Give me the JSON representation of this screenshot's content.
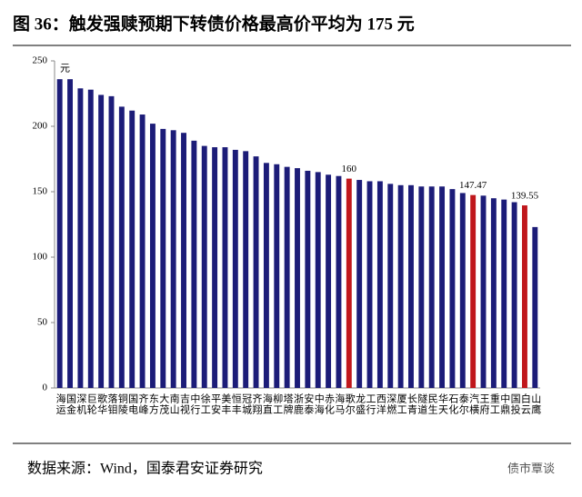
{
  "chart_data": {
    "type": "bar",
    "title": "图 36：触发强赎预期下转债价格最高价平均为 175 元",
    "y_label": "元",
    "source": "数据来源：Wind，国泰君安证券研究",
    "watermark": "债市覃谈",
    "categories": [
      "海运",
      "国金",
      "深机",
      "巨轮",
      "歌华",
      "落钼",
      "铜陵",
      "国电",
      "齐峰",
      "东方",
      "大茂",
      "南山",
      "吉视",
      "中行",
      "徐工",
      "平安",
      "美丰",
      "恒丰",
      "冠城",
      "齐翔",
      "海直",
      "柳工",
      "塔牌",
      "浙鹿",
      "安泰",
      "中海",
      "赤化",
      "海马",
      "歌尔",
      "龙盛",
      "工行",
      "西洋",
      "深燃",
      "厦工",
      "长青",
      "隧道",
      "民生",
      "华天",
      "石化",
      "泰尔",
      "汽横",
      "王府",
      "重工",
      "中鼎",
      "国投",
      "白云",
      "山鹰"
    ],
    "values": [
      236,
      236,
      229,
      228,
      224,
      223,
      215,
      212,
      209,
      202,
      198,
      197,
      195,
      189,
      185,
      184,
      184,
      182,
      181,
      177,
      172,
      171,
      169,
      168,
      166,
      165,
      163,
      162,
      160,
      159,
      158,
      158,
      156,
      155,
      155,
      154,
      154,
      154,
      152,
      149,
      147.47,
      147,
      145,
      144,
      142,
      139.55,
      123
    ],
    "value_labels": [
      null,
      null,
      null,
      null,
      null,
      null,
      null,
      null,
      null,
      null,
      null,
      null,
      null,
      null,
      null,
      null,
      null,
      null,
      null,
      null,
      null,
      null,
      null,
      null,
      null,
      null,
      null,
      null,
      "160",
      null,
      null,
      null,
      null,
      null,
      null,
      null,
      null,
      null,
      null,
      null,
      "147.47",
      null,
      null,
      null,
      null,
      "139.55",
      null
    ],
    "colors": [
      "#1c1c78",
      "#1c1c78",
      "#1c1c78",
      "#1c1c78",
      "#1c1c78",
      "#1c1c78",
      "#1c1c78",
      "#1c1c78",
      "#1c1c78",
      "#1c1c78",
      "#1c1c78",
      "#1c1c78",
      "#1c1c78",
      "#1c1c78",
      "#1c1c78",
      "#1c1c78",
      "#1c1c78",
      "#1c1c78",
      "#1c1c78",
      "#1c1c78",
      "#1c1c78",
      "#1c1c78",
      "#1c1c78",
      "#1c1c78",
      "#1c1c78",
      "#1c1c78",
      "#1c1c78",
      "#1c1c78",
      "#c0171c",
      "#1c1c78",
      "#1c1c78",
      "#1c1c78",
      "#1c1c78",
      "#1c1c78",
      "#1c1c78",
      "#1c1c78",
      "#1c1c78",
      "#1c1c78",
      "#1c1c78",
      "#1c1c78",
      "#c0171c",
      "#1c1c78",
      "#1c1c78",
      "#1c1c78",
      "#1c1c78",
      "#c0171c",
      "#1c1c78"
    ],
    "ylim": [
      0,
      250
    ],
    "yticks": [
      0,
      50,
      100,
      150,
      200,
      250
    ],
    "grid": false
  }
}
